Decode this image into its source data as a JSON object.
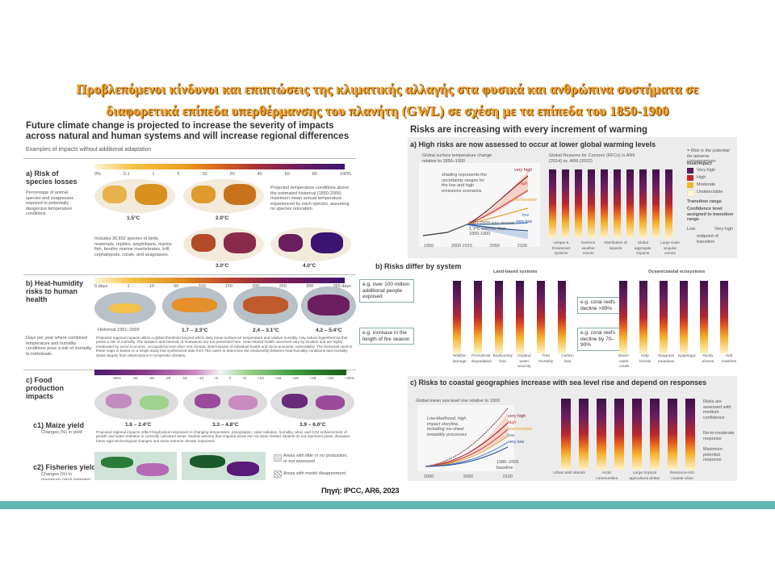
{
  "slide": {
    "title_line1": "Προβλεπόμενοι κίνδυνοι και επιπτώσεις της κλιματικής αλλαγής στα φυσικά και ανθρώπινα συστήματα σε",
    "title_line2": "διαφορετικά επίπεδα υπερθέρμανσης του πλανήτη (GWL) σε σχέση με τα επίπεδα του 1850-1900",
    "caption": "Πηγή: IPCC, AR6, 2023",
    "accent_color": "#5fb8b3",
    "title_color": "#f0a020"
  },
  "left_figure": {
    "heading": "Future climate change is projected to increase the severity of impacts across natural and human systems and will increase regional differences",
    "subheading": "Examples of impacts without additional adaptation",
    "section_a": {
      "label": "a) Risk of species losses",
      "desc": "Percentage of animal species and seagrasses exposed to potentially dangerous temperature conditions",
      "scale": [
        "0%",
        "0.1",
        "1",
        "5",
        "10",
        "20",
        "40",
        "60",
        "80",
        "100%"
      ],
      "maps": [
        "1.5°C",
        "2.0°C",
        "3.0°C",
        "4.0°C"
      ],
      "note1": "Projected temperature conditions above the estimated historical (1850-2005) maximum mean annual temperature experienced by each species, assuming no species relocation.",
      "note2": "Includes 30,652 species of birds, mammals, reptiles, amphibians, marine fish, benthic marine invertebrates, krill, cephalopods, corals, and seagrasses."
    },
    "section_b": {
      "label": "b) Heat-humidity risks to human health",
      "scale": [
        "0 days",
        "1",
        "10",
        "50",
        "100",
        "150",
        "200",
        "250",
        "300",
        "365 days"
      ],
      "historical": "Historical 1991–2005",
      "maps": [
        "1.7 – 2.3°C",
        "2.4 – 3.1°C",
        "4.2 – 5.4°C"
      ],
      "desc": "Days per year where combined temperature and humidity conditions pose a risk of mortality to individuals",
      "note": "Projected regional impacts utilize a global threshold beyond which daily mean surface air temperature and relative humidity may induce hyperthermia that poses a risk of mortality. The duration and intensity of heatwaves are not presented here. Heat-related health outcomes vary by location and are highly moderated by socio-economic, occupational and other non-climatic determinants of individual health and socio-economic vulnerability. The threshold used in these maps is based on a single study that synthesized data from 783 cases to determine the relationship between heat-humidity conditions and mortality drawn largely from observations in temperate climates."
    },
    "section_c": {
      "label": "c) Food production impacts",
      "scale": [
        "-35%",
        "-30",
        "-25",
        "-20",
        "-15",
        "-10",
        "-5",
        "0",
        "+5",
        "+10",
        "+15",
        "+20",
        "+25",
        "+30",
        "+35%"
      ],
      "c1_label": "c1) Maize yield",
      "c1_desc": "Changes (%) in yield",
      "maps": [
        "1.6 – 2.4°C",
        "3.3 – 4.8°C",
        "3.9 – 6.0°C"
      ],
      "note": "Projected regional impacts reflect biophysical responses to changing temperature, precipitation, solar radiation, humidity, wind, and CO2 enhancement of growth and water retention in currently cultivated areas. Models assume that irrigated areas are not water-limited. Models do not represent pests, diseases, future agro-technological changes and some extreme climate responses.",
      "c2_label": "c2) Fisheries yield",
      "c2_desc": "Changes (%) in maximum catch potential",
      "legend_none": "Areas with little or no production, or not assessed",
      "legend_disagree": "Areas with model disagreement"
    }
  },
  "right_figure": {
    "heading": "Risks are increasing with every increment of warming",
    "section_a": {
      "label": "a) High risks are now assessed to occur at lower global warming levels",
      "chart_title": "Global surface temperature change relative to 1850–1900",
      "rfc_title": "Global Reasons for Concern (RFCs) in AR5 (2014) vs. AR6 (2022)",
      "scenarios": [
        "very high",
        "high",
        "intermediate",
        "low",
        "very low"
      ],
      "x_ticks": [
        "1950",
        "2000 2015",
        "2050",
        "2100"
      ],
      "shading_note": "shading represents the uncertainty ranges for the low and high emissions scenarios",
      "obs_note": "2011-2020 was around 1.1°C warmer than 1850-1900",
      "rfc_items": [
        "Unique & threatened systems",
        "Extreme weather events",
        "Distribution of impacts",
        "Global aggregate impacts",
        "Large scale singular events"
      ],
      "rfc_headers": [
        "AR5",
        "AR6"
      ],
      "y_ticks": [
        "5",
        "4",
        "3",
        "2",
        "1.5",
        "1",
        "0",
        "-1"
      ],
      "unit": "°C",
      "legend_title": "Risk/Impact",
      "legend_levels": [
        "Very high",
        "High",
        "Moderate",
        "Undetectable"
      ],
      "legend_transition": "Transition range",
      "legend_confidence": "Confidence level assigned to transition range",
      "legend_low": "Low",
      "legend_veryhigh": "Very high",
      "legend_mid": "midpoint of transition",
      "legend_note": "= Risk is the potential for adverse consequences"
    },
    "section_b": {
      "label": "b) Risks differ by system",
      "land_title": "Land-based systems",
      "ocean_title": "Ocean/coastal ecosystems",
      "y_unit": "°C",
      "y_ticks": [
        "5",
        "4",
        "3",
        "2",
        "1.5",
        "1",
        "0"
      ],
      "callout1": "e.g. over 100 million additional people exposed",
      "callout2": "e.g. increase in the length of fire season",
      "callout3": "e.g. coral reefs decline >99%",
      "callout4": "e.g. coral reefs decline by 70–90%",
      "land_items": [
        "Wildfire damage",
        "Permafrost degradation",
        "Biodiversity loss",
        "Dryland water scarcity",
        "Tree mortality",
        "Carbon loss"
      ],
      "ocean_items": [
        "Warm-water corals",
        "Kelp forests",
        "Seagrass meadows",
        "Epipelagic",
        "Rocky shores",
        "Salt marshes"
      ]
    },
    "section_c": {
      "label": "c) Risks to coastal geographies increase with sea level rise and depend on responses",
      "chart_title": "Global mean sea level rise relative to 1900",
      "unit": "cm",
      "y_ticks": [
        "100",
        "75",
        "50",
        "25",
        "0"
      ],
      "x_ticks": [
        "2000",
        "2050",
        "2100"
      ],
      "scenarios": [
        "very high",
        "high",
        "intermediate",
        "low",
        "very low"
      ],
      "note": "Low-likelihood, high impact storyline, including ice-sheet instability processes",
      "baseline": "1986–2005 baseline",
      "geographies": [
        "Urban atoll islands",
        "Arctic communities",
        "Large tropical agricultural deltas",
        "Resource-rich coastal cities"
      ],
      "resp_no": "No-to-moderate response",
      "resp_max": "Maximum potential response",
      "resp_note": "Risks are assessed with medium confidence",
      "resp_letters": [
        "r",
        "R"
      ]
    }
  }
}
